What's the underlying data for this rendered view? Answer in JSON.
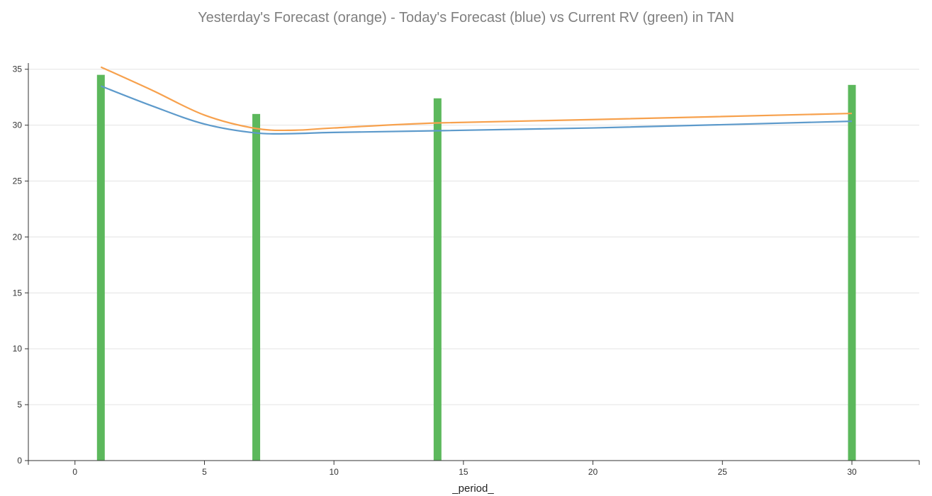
{
  "chart_data": {
    "type": "bar",
    "title": "Yesterday's Forecast (orange) - Today's Forecast (blue) vs Current RV (green) in TAN",
    "xlabel": "_period_",
    "ylabel": "",
    "xlim": [
      -1.8,
      32.6
    ],
    "ylim": [
      0,
      35.3
    ],
    "grid": true,
    "x_ticks": [
      0,
      5,
      10,
      15,
      20,
      25,
      30
    ],
    "y_ticks": [
      0,
      5,
      10,
      15,
      20,
      25,
      30,
      35
    ],
    "bars": {
      "color": "#5cb85c",
      "x": [
        1,
        7,
        14,
        30
      ],
      "values": [
        34.5,
        31.0,
        32.4,
        33.6
      ]
    },
    "series": [
      {
        "color": "#f7a14d",
        "x": [
          1,
          3,
          5,
          7,
          8.5,
          10,
          14,
          20,
          30
        ],
        "values": [
          35.2,
          33.1,
          30.9,
          29.7,
          29.55,
          29.75,
          30.2,
          30.5,
          31.05
        ]
      },
      {
        "color": "#5d9acb",
        "x": [
          1,
          3,
          5,
          7,
          8.5,
          10,
          14,
          20,
          30
        ],
        "values": [
          33.5,
          31.7,
          30.1,
          29.3,
          29.25,
          29.35,
          29.5,
          29.75,
          30.35
        ]
      }
    ]
  }
}
